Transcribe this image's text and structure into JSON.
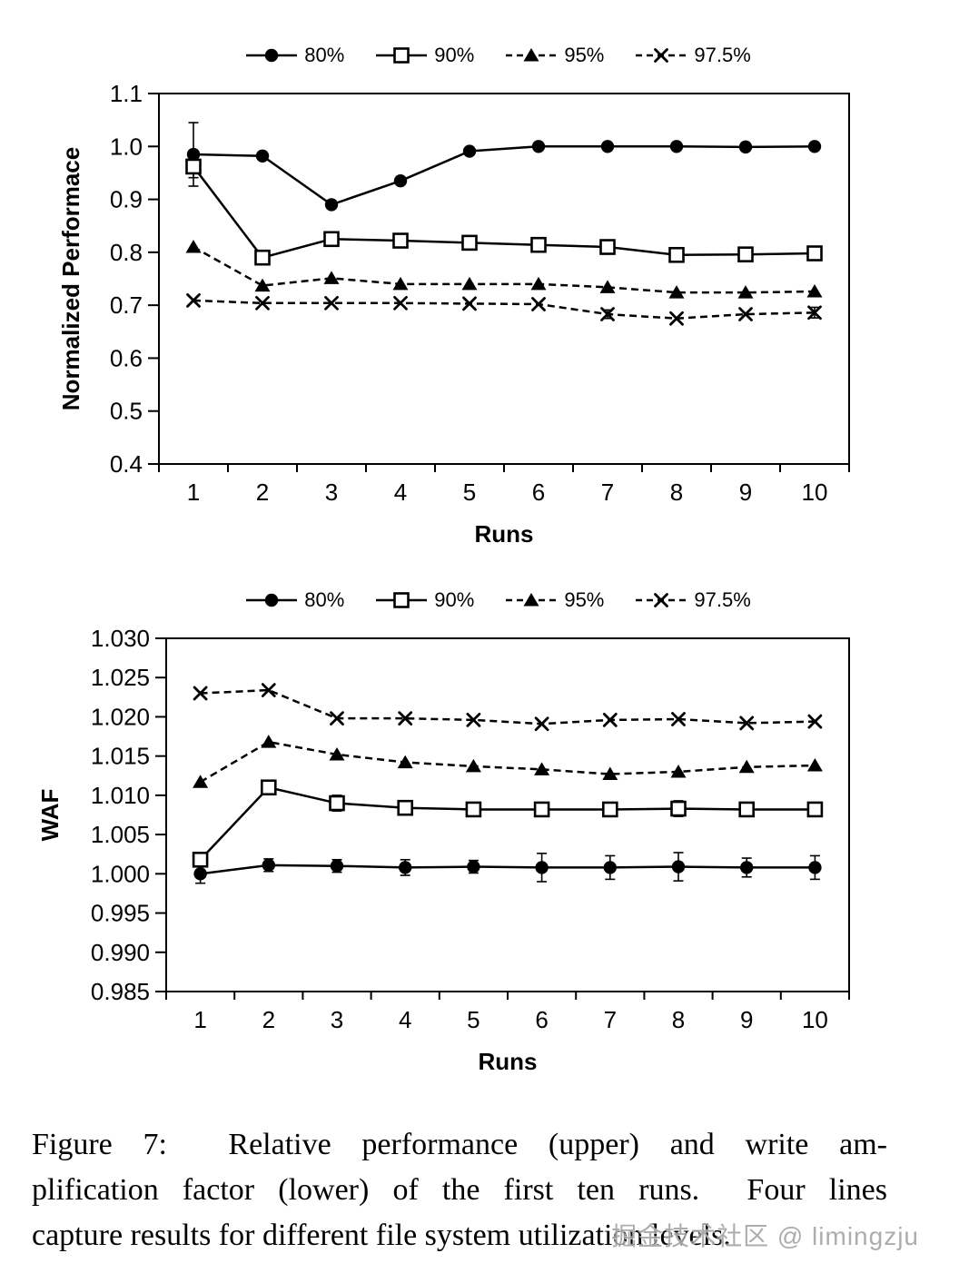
{
  "page": {
    "background": "#ffffff",
    "ink_color": "#000000"
  },
  "watermark": {
    "text": "掘金技术社区 @ limingzju",
    "color": "#969696"
  },
  "caption": {
    "lines": [
      "Figure 7:  Relative performance (upper) and write am-",
      "plification factor (lower) of the first ten runs.  Four lines",
      "capture results for different file system utilization levels."
    ]
  },
  "chart_data": [
    {
      "type": "line",
      "title": "",
      "xlabel": "Runs",
      "ylabel": "Normalized Performace",
      "legend_position": "top",
      "grid": false,
      "categories": [
        "1",
        "2",
        "3",
        "4",
        "5",
        "6",
        "7",
        "8",
        "9",
        "10"
      ],
      "ylim": [
        0.4,
        1.1
      ],
      "yticks": {
        "values": [
          0.4,
          0.5,
          0.6,
          0.7,
          0.8,
          0.9,
          1.0,
          1.1
        ],
        "labels": [
          "0.4",
          "0.5",
          "0.6",
          "0.7",
          "0.8",
          "0.9",
          "1.0",
          "1.1"
        ]
      },
      "series": [
        {
          "name": "80%",
          "marker": "filled-circle",
          "line": "solid",
          "values": [
            0.985,
            0.982,
            0.89,
            0.935,
            0.991,
            1.0,
            1.0,
            1.0,
            0.999,
            1.0
          ],
          "err": [
            0.06,
            0,
            0,
            0,
            0,
            0,
            0,
            0,
            0,
            0
          ]
        },
        {
          "name": "90%",
          "marker": "open-square",
          "line": "solid",
          "values": [
            0.962,
            0.79,
            0.825,
            0.822,
            0.818,
            0.814,
            0.81,
            0.795,
            0.796,
            0.798
          ],
          "err": [
            0.021,
            0,
            0,
            0,
            0,
            0,
            0,
            0,
            0,
            0
          ]
        },
        {
          "name": "95%",
          "marker": "filled-triangle",
          "line": "dashed",
          "values": [
            0.81,
            0.737,
            0.751,
            0.74,
            0.74,
            0.74,
            0.734,
            0.724,
            0.724,
            0.726
          ],
          "err": [
            0,
            0,
            0,
            0,
            0,
            0,
            0,
            0,
            0,
            0
          ]
        },
        {
          "name": "97.5%",
          "marker": "x",
          "line": "dashed",
          "values": [
            0.709,
            0.704,
            0.704,
            0.704,
            0.703,
            0.702,
            0.683,
            0.675,
            0.683,
            0.686
          ],
          "err": [
            0,
            0,
            0,
            0,
            0,
            0,
            0.008,
            0,
            0,
            0.01
          ]
        }
      ]
    },
    {
      "type": "line",
      "title": "",
      "xlabel": "Runs",
      "ylabel": "WAF",
      "legend_position": "top",
      "grid": false,
      "categories": [
        "1",
        "2",
        "3",
        "4",
        "5",
        "6",
        "7",
        "8",
        "9",
        "10"
      ],
      "ylim": [
        0.985,
        1.03
      ],
      "yticks": {
        "values": [
          0.985,
          0.99,
          0.995,
          1.0,
          1.005,
          1.01,
          1.015,
          1.02,
          1.025,
          1.03
        ],
        "labels": [
          "0.985",
          "0.990",
          "0.995",
          "1.000",
          "1.005",
          "1.010",
          "1.015",
          "1.020",
          "1.025",
          "1.030"
        ]
      },
      "series": [
        {
          "name": "80%",
          "marker": "filled-circle",
          "line": "solid",
          "values": [
            1.0,
            1.0011,
            1.001,
            1.0008,
            1.0009,
            1.0008,
            1.0008,
            1.0009,
            1.0008,
            1.0008
          ],
          "err": [
            0.0012,
            0.0008,
            0.0008,
            0.001,
            0.0008,
            0.0018,
            0.0015,
            0.0018,
            0.0012,
            0.0015
          ]
        },
        {
          "name": "90%",
          "marker": "open-square",
          "line": "solid",
          "values": [
            1.0018,
            1.011,
            1.009,
            1.0084,
            1.0082,
            1.0082,
            1.0082,
            1.0083,
            1.0082,
            1.0082
          ],
          "err": [
            0.0005,
            0.0004,
            0.001,
            0.0008,
            0.0008,
            0.0008,
            0.0008,
            0.001,
            0.0008,
            0.0005
          ]
        },
        {
          "name": "95%",
          "marker": "filled-triangle",
          "line": "dashed",
          "values": [
            1.0117,
            1.0168,
            1.0152,
            1.0142,
            1.0137,
            1.0133,
            1.0127,
            1.013,
            1.0136,
            1.0138
          ],
          "err": [
            0,
            0,
            0,
            0,
            0,
            0,
            0,
            0,
            0,
            0
          ]
        },
        {
          "name": "97.5%",
          "marker": "x",
          "line": "dashed",
          "values": [
            1.023,
            1.0234,
            1.0198,
            1.0198,
            1.0196,
            1.0191,
            1.0196,
            1.0197,
            1.0192,
            1.0194
          ],
          "err": [
            0,
            0,
            0,
            0,
            0,
            0,
            0,
            0,
            0,
            0
          ]
        }
      ]
    }
  ]
}
